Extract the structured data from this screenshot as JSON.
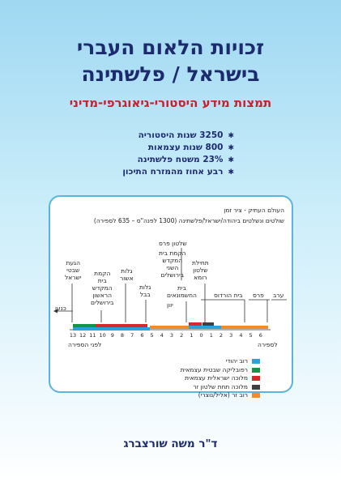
{
  "cover": {
    "title_line1": "זכויות הלאום העברי",
    "title_line2": "בישראל / פלשתינה",
    "subtitle": "תמצות מידע היסטורי-גיאוגרפי-מדיני",
    "bullets": [
      "3250 שנות היסטוריה",
      "800 שנות עצמאות",
      "23% משטח פלשתינה",
      "רבע אחוז מהמזרח התיכון"
    ],
    "bullet_icon": "star-icon",
    "author": "ד\"ר משה שורצברג"
  },
  "timeline": {
    "heading": "העולם העתיק - ציר זמן",
    "subheading": "שולטים ונשלטים ביהודה/ישראל/פלשתינה (1300 לפנה\"ס – 635 לספירה)",
    "axis_numbers": [
      "13",
      "12",
      "11",
      "10",
      "9",
      "8",
      "7",
      "6",
      "5",
      "4",
      "3",
      "2",
      "1",
      "0",
      "1",
      "2",
      "3",
      "4",
      "5",
      "6"
    ],
    "bce_label": "לפני הספירה",
    "ce_label": "לספירה",
    "events": {
      "canaan": "כנען",
      "arrival": [
        "הגעת",
        "שבטי",
        "ישראל"
      ],
      "first_temple": [
        "הקמת",
        "בית",
        "המקדש",
        "הראשון",
        "בירושלים"
      ],
      "assyria_exile": [
        "גלות",
        "אשור"
      ],
      "babylon_exile": [
        "גלות",
        "בבל"
      ],
      "persia_rule": "שלטון פרס",
      "second_temple": [
        "הקמת בית",
        "המקדש",
        "השני",
        "בירושלים"
      ],
      "hasmonean": [
        "בית",
        "החשמונאים"
      ],
      "greece": "יוון",
      "rome": [
        "תחילת",
        "שלטון",
        "רומא"
      ],
      "herod": "בית הורדוס",
      "persia": "פרס",
      "arab": "ערב"
    },
    "legend": [
      {
        "label": "רוב יהודי",
        "color": "#29a3dc"
      },
      {
        "label": "רפובליקה שבטית עצמאית",
        "color": "#159447"
      },
      {
        "label": "מלוכה ישראלית עצמאית",
        "color": "#d42a2a"
      },
      {
        "label": "מלוכה תחת שלטון זר",
        "color": "#404040"
      },
      {
        "label": "רוב זר (אליל/נוצרי)",
        "color": "#f28c28"
      }
    ]
  }
}
